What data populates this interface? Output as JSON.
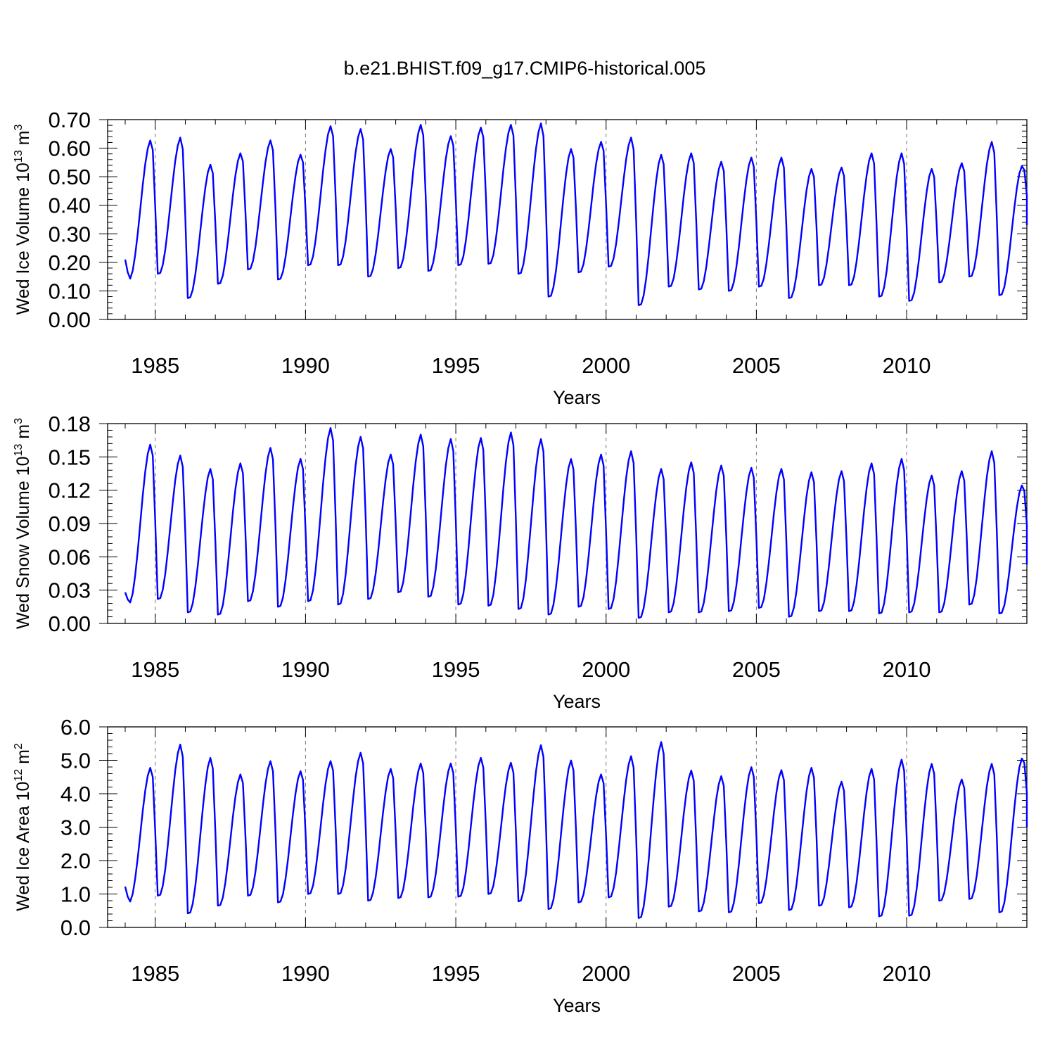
{
  "title": "b.e21.BHIST.f09_g17.CMIP6-historical.005",
  "colors": {
    "line": "#0000ff",
    "frame": "#000000",
    "refline": "#777777"
  },
  "chart_data": [
    {
      "type": "line",
      "name": "ice-volume",
      "ylabel_main": "Wed Ice Volume 10",
      "ylabel_exp": "13",
      "ylabel_unit": " m",
      "ylabel_unit_exp": "3",
      "xlabel": "Years",
      "xlim": [
        1984.0,
        2014.0
      ],
      "ylim": [
        0.0,
        0.7
      ],
      "yticks": [
        0.0,
        0.1,
        0.2,
        0.3,
        0.4,
        0.5,
        0.6,
        0.7
      ],
      "ytick_labels": [
        "0.00",
        "0.10",
        "0.20",
        "0.30",
        "0.40",
        "0.50",
        "0.60",
        "0.70"
      ],
      "xticks": [
        1985,
        1990,
        1995,
        2000,
        2005,
        2010
      ],
      "xtick_labels": [
        "1985",
        "1990",
        "1995",
        "2000",
        "2005",
        "2010"
      ],
      "minima": [
        0.14,
        0.16,
        0.075,
        0.125,
        0.175,
        0.14,
        0.19,
        0.19,
        0.15,
        0.18,
        0.17,
        0.19,
        0.195,
        0.16,
        0.08,
        0.165,
        0.185,
        0.05,
        0.115,
        0.105,
        0.1,
        0.115,
        0.075,
        0.12,
        0.12,
        0.08,
        0.065,
        0.13,
        0.15,
        0.085
      ],
      "maxima": [
        0.63,
        0.64,
        0.545,
        0.585,
        0.63,
        0.58,
        0.68,
        0.67,
        0.6,
        0.685,
        0.645,
        0.675,
        0.685,
        0.69,
        0.6,
        0.625,
        0.64,
        0.58,
        0.585,
        0.555,
        0.57,
        0.57,
        0.53,
        0.535,
        0.585,
        0.585,
        0.53,
        0.55,
        0.625,
        0.54
      ],
      "start_value": 0.21,
      "end_value": 0.33
    },
    {
      "type": "line",
      "name": "snow-volume",
      "ylabel_main": "Wed Snow Volume 10",
      "ylabel_exp": "13",
      "ylabel_unit": " m",
      "ylabel_unit_exp": "3",
      "xlabel": "Years",
      "xlim": [
        1984.0,
        2014.0
      ],
      "ylim": [
        0.0,
        0.18
      ],
      "yticks": [
        0.0,
        0.03,
        0.06,
        0.09,
        0.12,
        0.15,
        0.18
      ],
      "ytick_labels": [
        "0.00",
        "0.03",
        "0.06",
        "0.09",
        "0.12",
        "0.15",
        "0.18"
      ],
      "xticks": [
        1985,
        1990,
        1995,
        2000,
        2005,
        2010
      ],
      "xtick_labels": [
        "1985",
        "1990",
        "1995",
        "2000",
        "2005",
        "2010"
      ],
      "minima": [
        0.018,
        0.022,
        0.01,
        0.008,
        0.02,
        0.015,
        0.02,
        0.017,
        0.022,
        0.028,
        0.024,
        0.017,
        0.016,
        0.013,
        0.008,
        0.015,
        0.013,
        0.005,
        0.01,
        0.01,
        0.011,
        0.014,
        0.006,
        0.011,
        0.011,
        0.009,
        0.01,
        0.01,
        0.017,
        0.009
      ],
      "maxima": [
        0.162,
        0.152,
        0.14,
        0.145,
        0.159,
        0.149,
        0.177,
        0.169,
        0.153,
        0.171,
        0.167,
        0.168,
        0.173,
        0.167,
        0.149,
        0.153,
        0.156,
        0.14,
        0.146,
        0.143,
        0.141,
        0.14,
        0.137,
        0.138,
        0.145,
        0.149,
        0.134,
        0.138,
        0.156,
        0.125
      ],
      "start_value": 0.028,
      "end_value": 0.053
    },
    {
      "type": "line",
      "name": "ice-area",
      "ylabel_main": "Wed Ice Area 10",
      "ylabel_exp": "12",
      "ylabel_unit": " m",
      "ylabel_unit_exp": "2",
      "xlabel": "Years",
      "xlim": [
        1984.0,
        2014.0
      ],
      "ylim": [
        0.0,
        6.0
      ],
      "yticks": [
        0.0,
        1.0,
        2.0,
        3.0,
        4.0,
        5.0,
        6.0
      ],
      "ytick_labels": [
        "0.0",
        "1.0",
        "2.0",
        "3.0",
        "4.0",
        "5.0",
        "6.0"
      ],
      "xticks": [
        1985,
        1990,
        1995,
        2000,
        2005,
        2010
      ],
      "xtick_labels": [
        "1985",
        "1990",
        "1995",
        "2000",
        "2005",
        "2010"
      ],
      "minima": [
        0.75,
        0.95,
        0.42,
        0.65,
        0.95,
        0.75,
        1.0,
        1.0,
        0.8,
        0.88,
        0.9,
        0.92,
        1.0,
        0.78,
        0.55,
        0.75,
        0.9,
        0.28,
        0.62,
        0.48,
        0.45,
        0.72,
        0.52,
        0.65,
        0.6,
        0.33,
        0.35,
        0.8,
        0.85,
        0.45
      ],
      "maxima": [
        4.8,
        5.5,
        5.1,
        4.6,
        5.0,
        4.7,
        5.0,
        5.25,
        4.77,
        4.93,
        4.93,
        5.1,
        4.95,
        5.48,
        5.02,
        4.6,
        5.15,
        5.58,
        4.72,
        4.55,
        4.82,
        4.73,
        4.8,
        4.38,
        4.77,
        5.05,
        4.92,
        4.45,
        4.92,
        5.08
      ],
      "start_value": 1.22,
      "end_value": 3.0
    }
  ]
}
